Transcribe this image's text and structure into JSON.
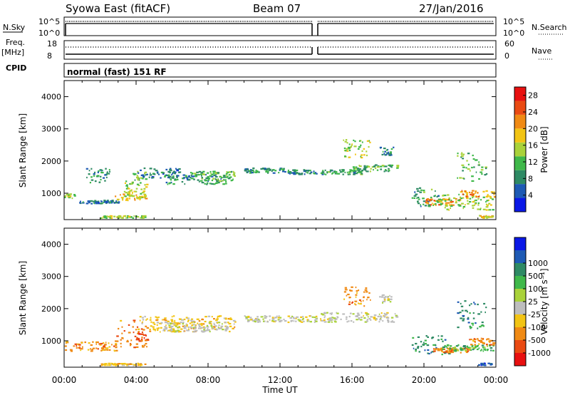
{
  "header": {
    "station": "Syowa East (fitACF)",
    "beam": "Beam 07",
    "date": "27/Jan/2016"
  },
  "strips": {
    "nsky_label": "N.Sky",
    "nsearch_label": "N.Search",
    "nsky_ticks": [
      "10^5",
      "10^0"
    ],
    "nsearch_ticks": [
      "10^5",
      "10^0"
    ],
    "freq_label": "Freq.",
    "freq_unit": "[MHz]",
    "freq_ticks": [
      "18",
      "8"
    ],
    "nave_label": "Nave",
    "nave_ticks": [
      "60",
      "0"
    ],
    "cpid_label": "CPID",
    "cpid_value": "normal (fast) 151 RF"
  },
  "colors": {
    "power": [
      "#0a18e6",
      "#1e5ab4",
      "#2e8a64",
      "#3fb84a",
      "#a9d23a",
      "#f2c414",
      "#f08a14",
      "#ea4a12",
      "#e81010"
    ],
    "velocity": [
      "#e81010",
      "#ea4a12",
      "#f08a14",
      "#f2c414",
      "#bdbdbd",
      "#a9d23a",
      "#3fb84a",
      "#2e8a64",
      "#1e5ab4",
      "#0a18e6"
    ]
  },
  "chart_data": [
    {
      "type": "heatmap",
      "name": "power",
      "title": "",
      "xlabel": "",
      "ylabel": "Slant Range [km]",
      "x_range_hours": [
        0,
        24
      ],
      "ylim": [
        180,
        4500
      ],
      "y_ticks": [
        "1000",
        "2000",
        "3000",
        "4000"
      ],
      "x_ticks": [
        "00:00",
        "04:00",
        "08:00",
        "12:00",
        "16:00",
        "20:00",
        "00:00"
      ],
      "colorbar_label": "Power [dB]",
      "colorbar_ticks": [
        "4",
        "8",
        "12",
        "16",
        "20",
        "24",
        "28"
      ],
      "colorbar_range": [
        0,
        30
      ],
      "regions": [
        {
          "t": [
            0.0,
            0.6
          ],
          "r": [
            850,
            1000
          ],
          "v": 14
        },
        {
          "t": [
            0.8,
            3.0
          ],
          "r": [
            700,
            800
          ],
          "v": 7
        },
        {
          "t": [
            1.2,
            2.5
          ],
          "r": [
            1350,
            1800
          ],
          "v": 9
        },
        {
          "t": [
            2.0,
            4.5
          ],
          "r": [
            250,
            320
          ],
          "v": 15
        },
        {
          "t": [
            2.8,
            4.6
          ],
          "r": [
            800,
            1000
          ],
          "v": 17
        },
        {
          "t": [
            3.3,
            4.6
          ],
          "r": [
            1000,
            1400
          ],
          "v": 14
        },
        {
          "t": [
            3.8,
            4.6
          ],
          "r": [
            1400,
            1700
          ],
          "v": 12
        },
        {
          "t": [
            4.0,
            6.5
          ],
          "r": [
            1500,
            1800
          ],
          "v": 7
        },
        {
          "t": [
            5.5,
            9.0
          ],
          "r": [
            1300,
            1600
          ],
          "v": 9
        },
        {
          "t": [
            7.0,
            9.5
          ],
          "r": [
            1400,
            1700
          ],
          "v": 12
        },
        {
          "t": [
            10.0,
            12.5
          ],
          "r": [
            1650,
            1800
          ],
          "v": 9
        },
        {
          "t": [
            12.5,
            14.0
          ],
          "r": [
            1600,
            1750
          ],
          "v": 8
        },
        {
          "t": [
            14.2,
            16.5
          ],
          "r": [
            1600,
            1750
          ],
          "v": 10
        },
        {
          "t": [
            15.5,
            17.0
          ],
          "r": [
            2100,
            2700
          ],
          "v": 15
        },
        {
          "t": [
            16.0,
            18.5
          ],
          "r": [
            1700,
            1900
          ],
          "v": 11
        },
        {
          "t": [
            17.5,
            18.3
          ],
          "r": [
            2200,
            2450
          ],
          "v": 8
        },
        {
          "t": [
            19.3,
            20.8
          ],
          "r": [
            600,
            1200
          ],
          "v": 10
        },
        {
          "t": [
            20.0,
            22.0
          ],
          "r": [
            650,
            850
          ],
          "v": 22
        },
        {
          "t": [
            20.5,
            23.8
          ],
          "r": [
            500,
            1000
          ],
          "v": 14
        },
        {
          "t": [
            22.0,
            23.9
          ],
          "r": [
            900,
            1100
          ],
          "v": 21
        },
        {
          "t": [
            21.8,
            23.5
          ],
          "r": [
            1400,
            2300
          ],
          "v": 12
        },
        {
          "t": [
            23.0,
            23.8
          ],
          "r": [
            250,
            330
          ],
          "v": 18
        }
      ]
    },
    {
      "type": "heatmap",
      "name": "velocity",
      "title": "",
      "xlabel": "Time UT",
      "ylabel": "Slant Range [km]",
      "x_range_hours": [
        0,
        24
      ],
      "ylim": [
        180,
        4500
      ],
      "y_ticks": [
        "1000",
        "2000",
        "3000",
        "4000"
      ],
      "x_ticks": [
        "00:00",
        "04:00",
        "08:00",
        "12:00",
        "16:00",
        "20:00",
        "00:00"
      ],
      "colorbar_label": "Velocity [m s⁻¹]",
      "colorbar_ticks": [
        "-1000",
        "-500",
        "-100",
        "-25",
        "25",
        "100",
        "500",
        "1000"
      ],
      "regions": [
        {
          "t": [
            0.0,
            3.0
          ],
          "r": [
            700,
            1000
          ],
          "c": 2
        },
        {
          "t": [
            2.0,
            4.5
          ],
          "r": [
            250,
            320
          ],
          "c": 3
        },
        {
          "t": [
            2.8,
            4.6
          ],
          "r": [
            800,
            1700
          ],
          "c": 2
        },
        {
          "t": [
            3.8,
            4.6
          ],
          "r": [
            1000,
            1300
          ],
          "c": 1
        },
        {
          "t": [
            4.0,
            9.5
          ],
          "r": [
            1300,
            1800
          ],
          "c": 3
        },
        {
          "t": [
            5.5,
            9.0
          ],
          "r": [
            1300,
            1600
          ],
          "c": 4
        },
        {
          "t": [
            10.0,
            14.0
          ],
          "r": [
            1600,
            1800
          ],
          "c": 4
        },
        {
          "t": [
            14.2,
            18.5
          ],
          "r": [
            1600,
            1900
          ],
          "c": 4
        },
        {
          "t": [
            15.5,
            17.0
          ],
          "r": [
            2100,
            2700
          ],
          "c": 2
        },
        {
          "t": [
            17.5,
            18.3
          ],
          "r": [
            2200,
            2450
          ],
          "c": 4
        },
        {
          "t": [
            19.3,
            21.5
          ],
          "r": [
            600,
            1200
          ],
          "c": 7
        },
        {
          "t": [
            20.5,
            22.5
          ],
          "r": [
            650,
            800
          ],
          "c": 2
        },
        {
          "t": [
            21.0,
            23.9
          ],
          "r": [
            700,
            900
          ],
          "c": 6
        },
        {
          "t": [
            22.5,
            23.9
          ],
          "r": [
            900,
            1100
          ],
          "c": 2
        },
        {
          "t": [
            21.8,
            23.5
          ],
          "r": [
            1400,
            2300
          ],
          "c": 7
        },
        {
          "t": [
            23.0,
            23.8
          ],
          "r": [
            250,
            330
          ],
          "c": 8
        }
      ]
    }
  ]
}
